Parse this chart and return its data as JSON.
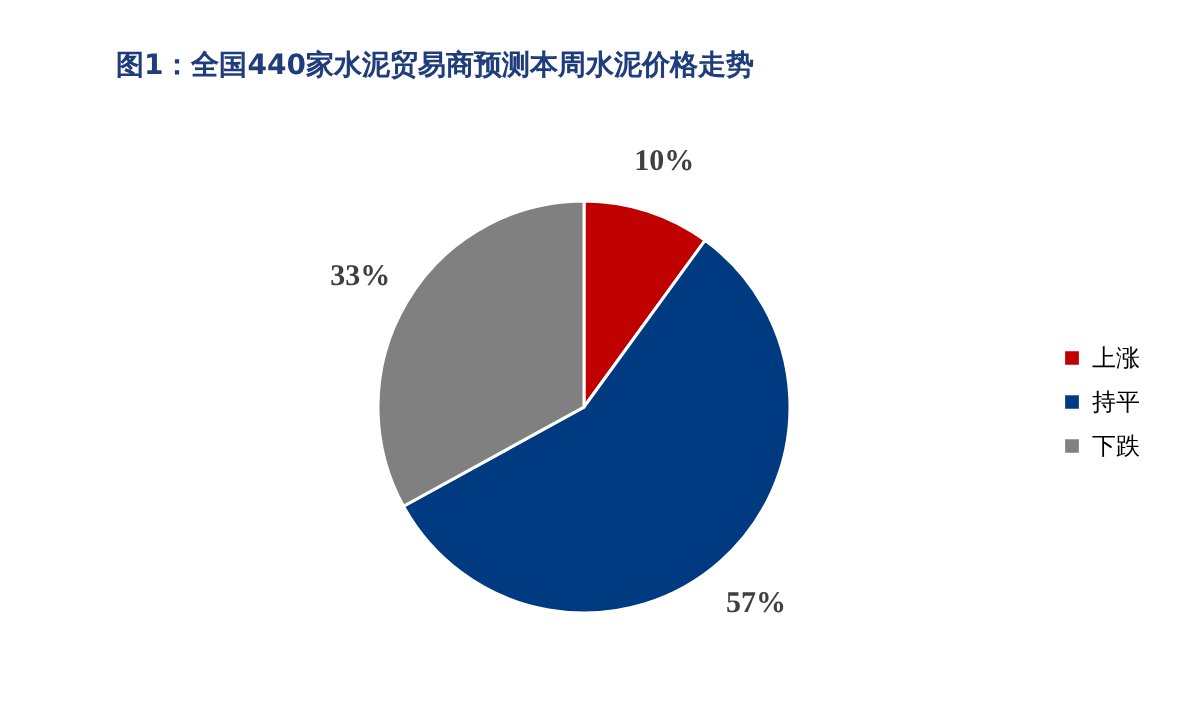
{
  "chart_data": {
    "type": "pie",
    "title": "图1：全国440家水泥贸易商预测本周水泥价格走势",
    "categories": [
      "上涨",
      "持平",
      "下跌"
    ],
    "values": [
      10,
      57,
      33
    ],
    "colors": [
      "#c00000",
      "#003a80",
      "#808080"
    ],
    "value_labels": [
      "10%",
      "57%",
      "33%"
    ],
    "legend": "right"
  }
}
